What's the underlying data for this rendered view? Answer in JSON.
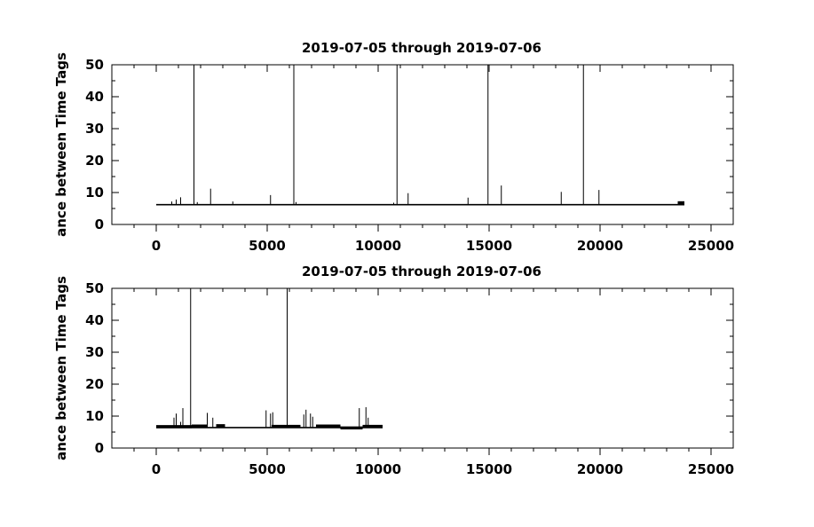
{
  "chart_data": [
    {
      "type": "line",
      "title": "2019-07-05 through 2019-07-06",
      "ylabel": "ance between Time Tags",
      "xlabel": "",
      "xlim": [
        -2000,
        26000
      ],
      "ylim": [
        0,
        50
      ],
      "x_ticks": [
        0,
        5000,
        10000,
        15000,
        20000,
        25000
      ],
      "x_minor_ticks": [
        -1000,
        1000,
        2000,
        3000,
        4000,
        6000,
        7000,
        8000,
        9000,
        11000,
        12000,
        13000,
        14000,
        16000,
        17000,
        18000,
        19000,
        21000,
        22000,
        23000,
        24000
      ],
      "y_ticks": [
        0,
        10,
        20,
        30,
        40,
        50
      ],
      "y_minor_ticks": [
        5,
        15,
        25,
        35,
        45
      ],
      "grid": false,
      "color": "#000000",
      "baseline": 6.2,
      "x_range": [
        0,
        23800
      ],
      "thick_segments": [
        {
          "x": [
            23500,
            23800
          ],
          "y": [
            6.8,
            6.8
          ]
        }
      ],
      "spikes": [
        {
          "x": 1700,
          "y": 50
        },
        {
          "x": 6200,
          "y": 50
        },
        {
          "x": 10850,
          "y": 50
        },
        {
          "x": 14950,
          "y": 50
        },
        {
          "x": 19250,
          "y": 50
        },
        {
          "x": 700,
          "y": 7.2
        },
        {
          "x": 900,
          "y": 7.8
        },
        {
          "x": 1100,
          "y": 8.5
        },
        {
          "x": 1850,
          "y": 7.0
        },
        {
          "x": 2450,
          "y": 11.2
        },
        {
          "x": 3450,
          "y": 7.2
        },
        {
          "x": 5150,
          "y": 9.2
        },
        {
          "x": 6300,
          "y": 7.0
        },
        {
          "x": 10700,
          "y": 6.8
        },
        {
          "x": 11350,
          "y": 9.8
        },
        {
          "x": 14050,
          "y": 8.4
        },
        {
          "x": 15550,
          "y": 12.2
        },
        {
          "x": 18250,
          "y": 10.2
        },
        {
          "x": 19950,
          "y": 10.8
        }
      ]
    },
    {
      "type": "line",
      "title": "2019-07-05 through 2019-07-06",
      "ylabel": "ance between Time Tags",
      "xlabel": "",
      "xlim": [
        -2000,
        26000
      ],
      "ylim": [
        0,
        50
      ],
      "x_ticks": [
        0,
        5000,
        10000,
        15000,
        20000,
        25000
      ],
      "x_minor_ticks": [
        -1000,
        1000,
        2000,
        3000,
        4000,
        6000,
        7000,
        8000,
        9000,
        11000,
        12000,
        13000,
        14000,
        16000,
        17000,
        18000,
        19000,
        21000,
        22000,
        23000,
        24000
      ],
      "y_ticks": [
        0,
        10,
        20,
        30,
        40,
        50
      ],
      "y_minor_ticks": [
        5,
        15,
        25,
        35,
        45
      ],
      "grid": false,
      "color": "#000000",
      "baseline": 6.4,
      "x_range": [
        0,
        10200
      ],
      "thick_segments": [
        {
          "x": [
            0,
            1600
          ],
          "y": [
            6.7,
            6.7
          ]
        },
        {
          "x": [
            1600,
            2300
          ],
          "y": [
            6.9,
            6.9
          ]
        },
        {
          "x": [
            2700,
            3100
          ],
          "y": [
            7.0,
            7.0
          ]
        },
        {
          "x": [
            5200,
            6500
          ],
          "y": [
            6.8,
            6.8
          ]
        },
        {
          "x": [
            7200,
            8300
          ],
          "y": [
            6.9,
            6.9
          ]
        },
        {
          "x": [
            8300,
            9300
          ],
          "y": [
            6.3,
            6.3
          ]
        },
        {
          "x": [
            9300,
            10200
          ],
          "y": [
            6.8,
            6.8
          ]
        }
      ],
      "spikes": [
        {
          "x": 1550,
          "y": 50
        },
        {
          "x": 5900,
          "y": 50
        },
        {
          "x": 800,
          "y": 9.5
        },
        {
          "x": 900,
          "y": 10.8
        },
        {
          "x": 1100,
          "y": 8.2
        },
        {
          "x": 1200,
          "y": 12.5
        },
        {
          "x": 2300,
          "y": 11.0
        },
        {
          "x": 2550,
          "y": 9.5
        },
        {
          "x": 4950,
          "y": 11.8
        },
        {
          "x": 5150,
          "y": 10.8
        },
        {
          "x": 5250,
          "y": 11.2
        },
        {
          "x": 6650,
          "y": 10.5
        },
        {
          "x": 6750,
          "y": 12.0
        },
        {
          "x": 6950,
          "y": 10.8
        },
        {
          "x": 7050,
          "y": 9.8
        },
        {
          "x": 9150,
          "y": 12.5
        },
        {
          "x": 9450,
          "y": 12.8
        },
        {
          "x": 9550,
          "y": 9.5
        }
      ]
    }
  ]
}
